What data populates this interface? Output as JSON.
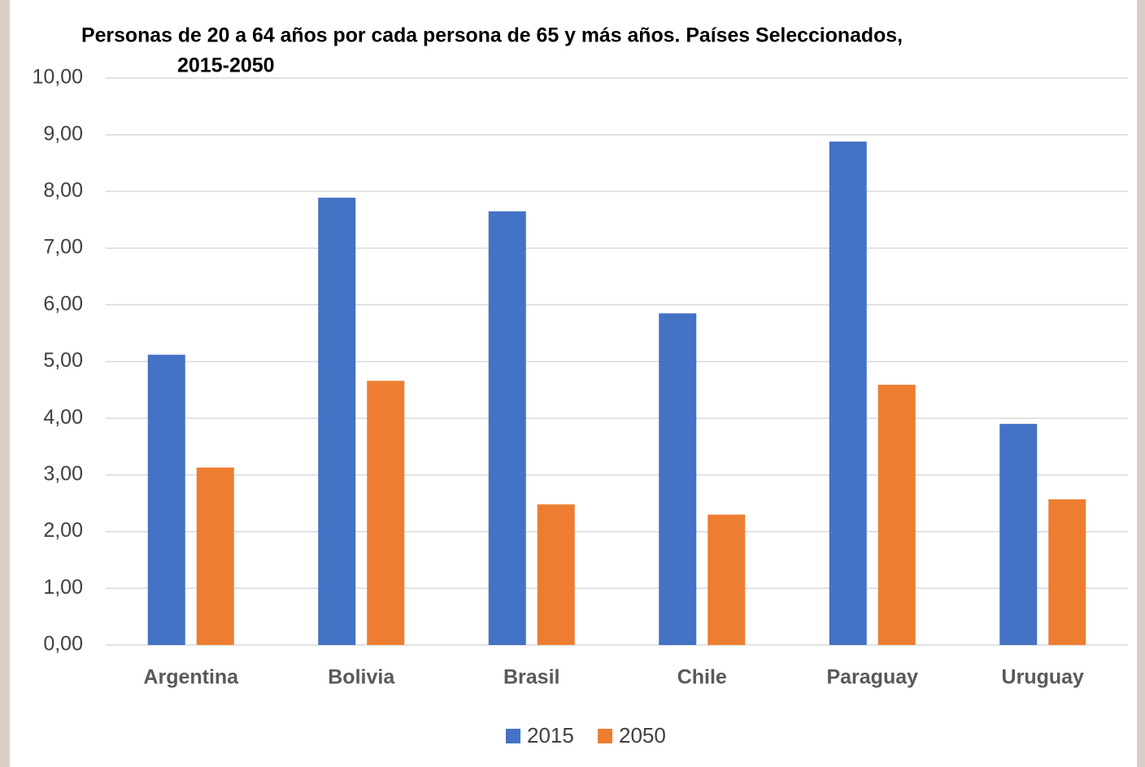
{
  "chart_data": {
    "type": "bar",
    "title": [
      "Personas de 20 a 64 años por cada persona de 65 y más años. Países Seleccionados,",
      "2015-2050"
    ],
    "categories": [
      "Argentina",
      "Bolivia",
      "Brasil",
      "Chile",
      "Paraguay",
      "Uruguay"
    ],
    "series": [
      {
        "name": "2015",
        "color": "#4472c4",
        "values": [
          5.12,
          7.89,
          7.65,
          5.85,
          8.88,
          3.9
        ]
      },
      {
        "name": "2050",
        "color": "#ed7d31",
        "values": [
          3.13,
          4.66,
          2.48,
          2.3,
          4.59,
          2.57
        ]
      }
    ],
    "ylim": [
      0,
      10
    ],
    "yticks": [
      {
        "value": 0,
        "label": "0,00"
      },
      {
        "value": 1,
        "label": "1,00"
      },
      {
        "value": 2,
        "label": "2,00"
      },
      {
        "value": 3,
        "label": "3,00"
      },
      {
        "value": 4,
        "label": "4,00"
      },
      {
        "value": 5,
        "label": "5,00"
      },
      {
        "value": 6,
        "label": "6,00"
      },
      {
        "value": 7,
        "label": "7,00"
      },
      {
        "value": 8,
        "label": "8,00"
      },
      {
        "value": 9,
        "label": "9,00"
      },
      {
        "value": 10,
        "label": "10,00"
      }
    ],
    "grid": true,
    "legend": "bottom"
  }
}
